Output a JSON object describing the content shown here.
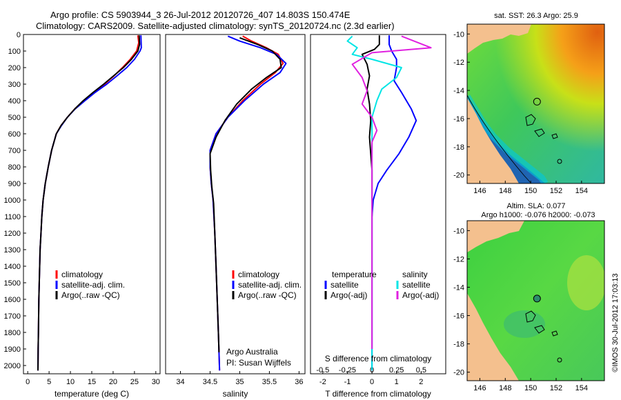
{
  "header": {
    "line1": "Argo profile: CS 5903944_3 26-Jul-2012 20120726_407 14.803S 150.474E",
    "line2": "Climatology: CARS2009. Satellite-adjusted climatology: synTS_20120724.nc (2.3d earlier)"
  },
  "colors": {
    "climatology": "#ff0000",
    "satellite": "#0000ff",
    "argo": "#000000",
    "satellite_salinity": "#00e5e5",
    "argo_salinity_adj": "#e020e0"
  },
  "chart_data": [
    {
      "id": "temperature",
      "type": "line",
      "xlabel": "temperature (deg C)",
      "xlim": [
        -1,
        31
      ],
      "xticks": [
        0,
        5,
        10,
        15,
        20,
        25,
        30
      ],
      "ylim": [
        0,
        2050
      ],
      "yticks": [
        0,
        100,
        200,
        300,
        400,
        500,
        600,
        700,
        800,
        900,
        1000,
        1100,
        1200,
        1300,
        1400,
        1500,
        1600,
        1700,
        1800,
        1900,
        2000
      ],
      "legend": [
        "climatology",
        "satellite-adj. clim.",
        "Argo(..raw -QC)"
      ],
      "series": [
        {
          "name": "climatology",
          "color": "#ff0000",
          "points": [
            [
              25.8,
              5
            ],
            [
              26.0,
              50
            ],
            [
              25.5,
              100
            ],
            [
              24.0,
              150
            ],
            [
              22.2,
              200
            ],
            [
              20.2,
              250
            ],
            [
              18.0,
              300
            ],
            [
              15.5,
              350
            ],
            [
              13.2,
              400
            ],
            [
              11.0,
              450
            ],
            [
              9.3,
              500
            ],
            [
              7.8,
              550
            ],
            [
              6.7,
              600
            ],
            [
              5.6,
              700
            ],
            [
              4.8,
              800
            ],
            [
              4.1,
              900
            ],
            [
              3.6,
              1000
            ],
            [
              3.3,
              1100
            ],
            [
              3.1,
              1200
            ],
            [
              2.9,
              1300
            ],
            [
              2.8,
              1400
            ],
            [
              2.7,
              1500
            ],
            [
              2.6,
              1600
            ],
            [
              2.55,
              1700
            ],
            [
              2.5,
              1800
            ],
            [
              2.45,
              1900
            ],
            [
              2.4,
              2030
            ]
          ]
        },
        {
          "name": "satellite-adj. clim.",
          "color": "#0000ff",
          "points": [
            [
              26.5,
              5
            ],
            [
              26.6,
              80
            ],
            [
              26.3,
              100
            ],
            [
              25.0,
              150
            ],
            [
              23.2,
              200
            ],
            [
              20.9,
              250
            ],
            [
              18.5,
              300
            ],
            [
              15.8,
              350
            ],
            [
              13.4,
              400
            ],
            [
              11.1,
              450
            ],
            [
              9.3,
              500
            ],
            [
              7.9,
              550
            ],
            [
              6.7,
              600
            ],
            [
              5.6,
              700
            ],
            [
              4.8,
              800
            ],
            [
              4.1,
              900
            ],
            [
              3.6,
              1000
            ],
            [
              3.3,
              1100
            ],
            [
              3.1,
              1200
            ],
            [
              2.9,
              1300
            ],
            [
              2.8,
              1400
            ],
            [
              2.7,
              1500
            ],
            [
              2.6,
              1600
            ],
            [
              2.55,
              1700
            ],
            [
              2.5,
              1800
            ],
            [
              2.45,
              1900
            ],
            [
              2.4,
              2030
            ]
          ]
        },
        {
          "name": "Argo(..raw -QC)",
          "color": "#000000",
          "points": [
            [
              26.1,
              5
            ],
            [
              26.2,
              60
            ],
            [
              25.8,
              100
            ],
            [
              24.3,
              150
            ],
            [
              22.4,
              200
            ],
            [
              20.1,
              250
            ],
            [
              17.8,
              300
            ],
            [
              15.3,
              350
            ],
            [
              13.0,
              400
            ],
            [
              11.0,
              450
            ],
            [
              9.3,
              500
            ],
            [
              7.8,
              550
            ],
            [
              6.7,
              600
            ],
            [
              5.6,
              700
            ],
            [
              4.8,
              800
            ],
            [
              4.1,
              900
            ],
            [
              3.6,
              1000
            ],
            [
              3.3,
              1100
            ],
            [
              3.1,
              1200
            ],
            [
              2.9,
              1300
            ],
            [
              2.8,
              1400
            ],
            [
              2.7,
              1500
            ],
            [
              2.6,
              1600
            ],
            [
              2.55,
              1700
            ],
            [
              2.5,
              1800
            ],
            [
              2.45,
              1900
            ],
            [
              2.4,
              2030
            ]
          ]
        }
      ]
    },
    {
      "id": "salinity",
      "type": "line",
      "xlabel": "salinity",
      "xlim": [
        33.75,
        36.1
      ],
      "xticks": [
        34,
        34.5,
        35,
        35.5,
        36
      ],
      "xticklabels": [
        "34",
        "34.5",
        "35",
        "35.5",
        "36"
      ],
      "ylim": [
        0,
        2050
      ],
      "legend": [
        "climatology",
        "satellite-adj. clim.",
        "Argo(..raw -QC)"
      ],
      "annotations": [
        "Argo Australia",
        "PI: Susan Wijffels"
      ],
      "series": [
        {
          "name": "climatology",
          "color": "#ff0000",
          "points": [
            [
              35.05,
              10
            ],
            [
              35.2,
              40
            ],
            [
              35.45,
              80
            ],
            [
              35.65,
              120
            ],
            [
              35.73,
              175
            ],
            [
              35.6,
              230
            ],
            [
              35.35,
              300
            ],
            [
              35.05,
              400
            ],
            [
              34.8,
              500
            ],
            [
              34.6,
              600
            ],
            [
              34.5,
              700
            ],
            [
              34.5,
              800
            ],
            [
              34.52,
              900
            ],
            [
              34.55,
              1000
            ],
            [
              34.58,
              1200
            ],
            [
              34.6,
              1400
            ],
            [
              34.62,
              1600
            ],
            [
              34.64,
              1800
            ],
            [
              34.66,
              2030
            ]
          ]
        },
        {
          "name": "satellite-adj. clim.",
          "color": "#0000ff",
          "points": [
            [
              34.8,
              10
            ],
            [
              35.0,
              40
            ],
            [
              35.35,
              80
            ],
            [
              35.62,
              120
            ],
            [
              35.78,
              175
            ],
            [
              35.68,
              230
            ],
            [
              35.4,
              300
            ],
            [
              35.08,
              400
            ],
            [
              34.8,
              500
            ],
            [
              34.6,
              600
            ],
            [
              34.5,
              700
            ],
            [
              34.5,
              800
            ],
            [
              34.52,
              900
            ],
            [
              34.55,
              1000
            ],
            [
              34.58,
              1200
            ],
            [
              34.6,
              1400
            ],
            [
              34.62,
              1600
            ],
            [
              34.64,
              1800
            ],
            [
              34.66,
              2030
            ]
          ]
        },
        {
          "name": "Argo(..raw -QC)",
          "color": "#000000",
          "points": [
            [
              35.0,
              20
            ],
            [
              35.3,
              60
            ],
            [
              35.55,
              100
            ],
            [
              35.68,
              150
            ],
            [
              35.7,
              200
            ],
            [
              35.45,
              260
            ],
            [
              35.2,
              330
            ],
            [
              34.95,
              420
            ],
            [
              34.75,
              520
            ],
            [
              34.6,
              620
            ],
            [
              34.5,
              720
            ],
            [
              34.51,
              820
            ],
            [
              34.53,
              920
            ],
            [
              34.56,
              1020
            ],
            [
              34.58,
              1200
            ],
            [
              34.6,
              1400
            ],
            [
              34.62,
              1600
            ],
            [
              34.64,
              1800
            ],
            [
              34.65,
              1920
            ]
          ]
        }
      ]
    },
    {
      "id": "difference",
      "type": "line",
      "xlabel": "T difference from climatology",
      "xlabel_top": "S difference from climatology",
      "xlim": [
        -2.5,
        3
      ],
      "xticks": [
        -2,
        -1,
        0,
        1,
        2
      ],
      "top_ticks": [
        -0.5,
        -0.25,
        0,
        0.25,
        0.5
      ],
      "top_ticklabels": [
        "-0.5",
        "-0.25",
        "0",
        "0.25",
        "0.5"
      ],
      "ylim": [
        0,
        2050
      ],
      "legend_temperature_title": "temperature",
      "legend_salinity_title": "salinity",
      "legend": [
        "satellite",
        "Argo(-adj)",
        "satellite",
        "Argo(-adj)"
      ],
      "series": [
        {
          "name": "temperature satellite",
          "color": "#0000ff",
          "points": [
            [
              0.7,
              5
            ],
            [
              0.7,
              60
            ],
            [
              0.8,
              100
            ],
            [
              1.0,
              150
            ],
            [
              1.0,
              200
            ],
            [
              0.9,
              280
            ],
            [
              1.2,
              350
            ],
            [
              1.6,
              450
            ],
            [
              1.8,
              520
            ],
            [
              1.5,
              620
            ],
            [
              1.1,
              720
            ],
            [
              0.6,
              820
            ],
            [
              0.25,
              900
            ],
            [
              0.05,
              1000
            ],
            [
              0,
              1100
            ],
            [
              0,
              2030
            ]
          ]
        },
        {
          "name": "temperature Argo(-adj)",
          "color": "#000000",
          "points": [
            [
              0.3,
              5
            ],
            [
              0.3,
              60
            ],
            [
              0.1,
              90
            ],
            [
              -0.4,
              120
            ],
            [
              -0.2,
              180
            ],
            [
              -0.1,
              250
            ],
            [
              -0.2,
              330
            ],
            [
              -0.1,
              420
            ],
            [
              -0.05,
              520
            ],
            [
              -0.1,
              620
            ],
            [
              -0.05,
              720
            ],
            [
              0,
              820
            ],
            [
              0,
              900
            ],
            [
              0,
              1000
            ],
            [
              0,
              1100
            ]
          ]
        },
        {
          "name": "salinity satellite",
          "color": "#00e5e5",
          "points": [
            [
              -0.2,
              10
            ],
            [
              -0.25,
              40
            ],
            [
              -0.15,
              80
            ],
            [
              -0.2,
              120
            ],
            [
              0,
              150
            ],
            [
              0.3,
              200
            ],
            [
              0.25,
              260
            ],
            [
              0.1,
              330
            ],
            [
              0.05,
              400
            ],
            [
              0,
              500
            ],
            [
              0,
              600
            ],
            [
              0,
              2030
            ]
          ]
        },
        {
          "name": "salinity Argo(-adj)",
          "color": "#e020e0",
          "points": [
            [
              0.3,
              10
            ],
            [
              0.6,
              80
            ],
            [
              0.0,
              110
            ],
            [
              -0.2,
              180
            ],
            [
              -0.1,
              260
            ],
            [
              -0.05,
              340
            ],
            [
              -0.1,
              420
            ],
            [
              0.0,
              500
            ],
            [
              0.05,
              580
            ],
            [
              0.0,
              650
            ],
            [
              0,
              750
            ],
            [
              0,
              900
            ],
            [
              0,
              1100
            ],
            [
              0,
              1500
            ],
            [
              0,
              1900
            ]
          ]
        }
      ]
    },
    {
      "id": "sst-map",
      "type": "heatmap",
      "title": "sat. SST: 26.3 Argo: 25.9",
      "xticks": [
        146,
        148,
        150,
        152,
        154
      ],
      "yticks": [
        -10,
        -12,
        -14,
        -16,
        -18,
        -20
      ],
      "xlim": [
        145.0,
        155.8
      ],
      "ylim": [
        -20.6,
        -9.3
      ],
      "argo_marker": [
        150.5,
        -14.8
      ]
    },
    {
      "id": "sla-map",
      "type": "heatmap",
      "title_line1": "Altim. SLA: 0.077",
      "title_line2": "Argo h1000: -0.076 h2000: -0.073",
      "xticks": [
        146,
        148,
        150,
        152,
        154
      ],
      "yticks": [
        -10,
        -12,
        -14,
        -16,
        -18,
        -20
      ],
      "xlim": [
        145.0,
        155.8
      ],
      "ylim": [
        -20.6,
        -9.3
      ],
      "argo_marker": [
        150.5,
        -14.8
      ]
    }
  ],
  "footer": {
    "stamp": "©IMOS 30-Jul-2012 17:03:13"
  }
}
